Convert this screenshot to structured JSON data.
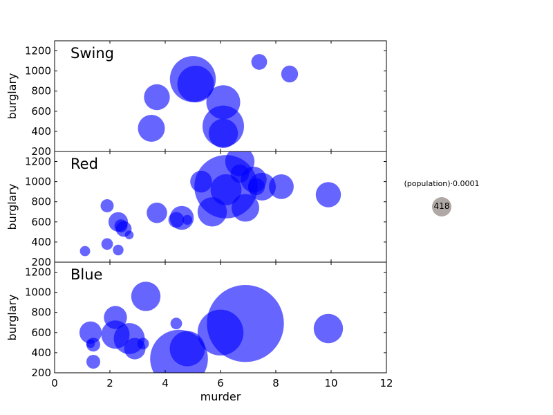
{
  "chart_data": {
    "type": "scatter",
    "xlabel": "murder",
    "ylabel": "burglary",
    "xlim": [
      0,
      12
    ],
    "ylim": [
      200,
      1300
    ],
    "x_ticks": [
      "0",
      "2",
      "4",
      "6",
      "8",
      "10",
      "12"
    ],
    "y_ticks": [
      "200",
      "400",
      "600",
      "800",
      "1000",
      "1200"
    ],
    "marker_color": "#0000ff",
    "marker_alpha": 0.6,
    "grid": false,
    "size_legend": {
      "title": "(population)·0.0001",
      "value": "418",
      "color": "#b0a8a5"
    },
    "panels": [
      {
        "title": "Swing",
        "points": [
          {
            "x": 7.4,
            "y": 1090,
            "size": 130
          },
          {
            "x": 8.5,
            "y": 970,
            "size": 150
          },
          {
            "x": 5.0,
            "y": 920,
            "size": 1100
          },
          {
            "x": 5.1,
            "y": 870,
            "size": 700
          },
          {
            "x": 3.7,
            "y": 740,
            "size": 350
          },
          {
            "x": 6.1,
            "y": 690,
            "size": 600
          },
          {
            "x": 3.5,
            "y": 430,
            "size": 380
          },
          {
            "x": 6.1,
            "y": 450,
            "size": 900
          },
          {
            "x": 6.1,
            "y": 380,
            "size": 450
          }
        ]
      },
      {
        "title": "Red",
        "points": [
          {
            "x": 6.7,
            "y": 1200,
            "size": 450
          },
          {
            "x": 6.7,
            "y": 1080,
            "size": 180
          },
          {
            "x": 7.2,
            "y": 1020,
            "size": 350
          },
          {
            "x": 5.3,
            "y": 1000,
            "size": 250
          },
          {
            "x": 6.2,
            "y": 950,
            "size": 2100
          },
          {
            "x": 6.2,
            "y": 920,
            "size": 500
          },
          {
            "x": 7.3,
            "y": 950,
            "size": 150
          },
          {
            "x": 7.5,
            "y": 950,
            "size": 400
          },
          {
            "x": 8.2,
            "y": 950,
            "size": 320
          },
          {
            "x": 9.9,
            "y": 870,
            "size": 330
          },
          {
            "x": 6.9,
            "y": 740,
            "size": 400
          },
          {
            "x": 5.7,
            "y": 700,
            "size": 450
          },
          {
            "x": 3.7,
            "y": 690,
            "size": 220
          },
          {
            "x": 4.6,
            "y": 640,
            "size": 300
          },
          {
            "x": 4.4,
            "y": 620,
            "size": 130
          },
          {
            "x": 4.8,
            "y": 620,
            "size": 50
          },
          {
            "x": 1.9,
            "y": 760,
            "size": 90
          },
          {
            "x": 2.3,
            "y": 600,
            "size": 200
          },
          {
            "x": 2.4,
            "y": 560,
            "size": 90
          },
          {
            "x": 2.5,
            "y": 530,
            "size": 130
          },
          {
            "x": 2.7,
            "y": 470,
            "size": 40
          },
          {
            "x": 1.9,
            "y": 380,
            "size": 70
          },
          {
            "x": 2.3,
            "y": 320,
            "size": 60
          },
          {
            "x": 1.1,
            "y": 310,
            "size": 55
          }
        ]
      },
      {
        "title": "Blue",
        "points": [
          {
            "x": 3.3,
            "y": 960,
            "size": 450
          },
          {
            "x": 2.2,
            "y": 750,
            "size": 280
          },
          {
            "x": 1.3,
            "y": 600,
            "size": 260
          },
          {
            "x": 2.2,
            "y": 580,
            "size": 420
          },
          {
            "x": 2.7,
            "y": 540,
            "size": 500
          },
          {
            "x": 3.2,
            "y": 490,
            "size": 70
          },
          {
            "x": 1.4,
            "y": 480,
            "size": 100
          },
          {
            "x": 1.3,
            "y": 490,
            "size": 40
          },
          {
            "x": 2.9,
            "y": 440,
            "size": 240
          },
          {
            "x": 1.4,
            "y": 310,
            "size": 100
          },
          {
            "x": 4.4,
            "y": 690,
            "size": 70
          },
          {
            "x": 4.8,
            "y": 440,
            "size": 650
          },
          {
            "x": 4.5,
            "y": 340,
            "size": 1750
          },
          {
            "x": 6.0,
            "y": 600,
            "size": 1100
          },
          {
            "x": 6.9,
            "y": 690,
            "size": 3100
          },
          {
            "x": 9.9,
            "y": 640,
            "size": 450
          }
        ]
      }
    ]
  }
}
